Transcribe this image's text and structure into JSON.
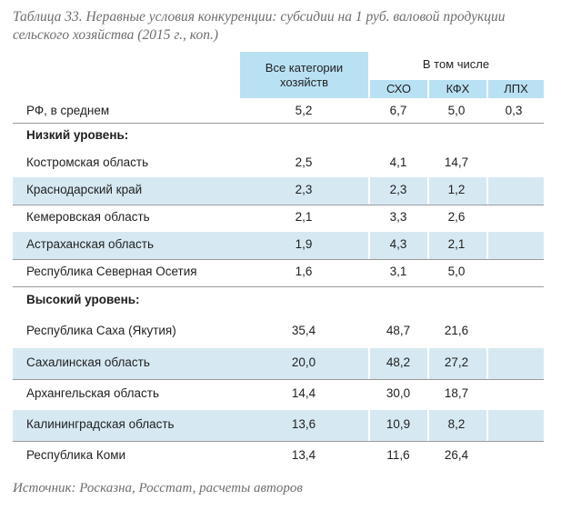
{
  "caption": "Таблица 33. Неравные условия конкуренции: субсидии на 1 руб. валовой продукции сельского хозяйства (2015 г., коп.)",
  "header": {
    "all_categories": "Все категории хозяйств",
    "group": "В том числе",
    "sub": [
      "СХО",
      "КФХ",
      "ЛПХ"
    ]
  },
  "rows": [
    {
      "name": "РФ, в среднем",
      "all": "5,2",
      "sxo": "6,7",
      "kfh": "5,0",
      "lph": "0,3"
    },
    {
      "section": "Низкий уровень:"
    },
    {
      "name": "Костромская область",
      "all": "2,5",
      "sxo": "4,1",
      "kfh": "14,7",
      "lph": ""
    },
    {
      "name": "Краснодарский край",
      "all": "2,3",
      "sxo": "2,3",
      "kfh": "1,2",
      "lph": ""
    },
    {
      "name": "Кемеровская область",
      "all": "2,1",
      "sxo": "3,3",
      "kfh": "2,6",
      "lph": ""
    },
    {
      "name": "Астраханская область",
      "all": "1,9",
      "sxo": "4,3",
      "kfh": "2,1",
      "lph": ""
    },
    {
      "name": "Республика Северная Осетия",
      "all": "1,6",
      "sxo": "3,1",
      "kfh": "5,0",
      "lph": ""
    },
    {
      "section": "Высокий уровень:"
    },
    {
      "name": "Республика Саха (Якутия)",
      "all": "35,4",
      "sxo": "48,7",
      "kfh": "21,6",
      "lph": ""
    },
    {
      "name": "Сахалинская область",
      "all": "20,0",
      "sxo": "48,2",
      "kfh": "27,2",
      "lph": ""
    },
    {
      "name": "Архангельская область",
      "all": "14,4",
      "sxo": "30,0",
      "kfh": "18,7",
      "lph": ""
    },
    {
      "name": "Калининградская область",
      "all": "13,6",
      "sxo": "10,9",
      "kfh": "8,2",
      "lph": ""
    },
    {
      "name": "Республика Коми",
      "all": "13,4",
      "sxo": "11,6",
      "kfh": "26,4",
      "lph": ""
    }
  ],
  "source": "Источник: Росказна, Росстат, расчеты авторов"
}
